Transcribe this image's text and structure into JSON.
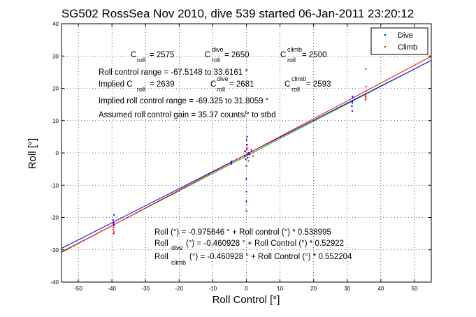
{
  "chart_data": {
    "type": "scatter",
    "title": "SG502 RossSea Nov 2010, dive 539 started 06-Jan-2011 23:20:12",
    "xlabel": "Roll Control [°]",
    "ylabel": "Roll [°]",
    "xlim": [
      -55,
      55
    ],
    "ylim": [
      -40,
      40
    ],
    "xticks": [
      -50,
      -40,
      -30,
      -20,
      -10,
      0,
      10,
      20,
      30,
      40,
      50
    ],
    "yticks": [
      -40,
      -30,
      -20,
      -10,
      0,
      10,
      20,
      30,
      40
    ],
    "grid": true,
    "legend_position": "top-right",
    "colors": {
      "dive": "#0000ff",
      "climb": "#ff0000",
      "fit_all": "#00aa00",
      "fit_dive": "#0000ff",
      "fit_climb": "#ff0000"
    },
    "series": [
      {
        "name": "Dive",
        "color": "#0000ff",
        "points": [
          [
            -39.5,
            -21.5
          ],
          [
            -39.4,
            -22.3
          ],
          [
            -39.6,
            -20.8
          ],
          [
            -39.5,
            -23.0
          ],
          [
            -39.4,
            -19.2
          ],
          [
            -39.5,
            -22.0
          ],
          [
            -4.5,
            -3.0
          ],
          [
            -4.4,
            -2.6
          ],
          [
            -4.5,
            -3.4
          ],
          [
            -0.5,
            -1.0
          ],
          [
            -0.3,
            0.5
          ],
          [
            -0.2,
            -2.0
          ],
          [
            0.0,
            -4.0
          ],
          [
            0.0,
            -8.0
          ],
          [
            0.0,
            -12.0
          ],
          [
            0.0,
            -15.0
          ],
          [
            0.0,
            -18.0
          ],
          [
            0.1,
            1.0
          ],
          [
            0.1,
            2.5
          ],
          [
            0.1,
            4.0
          ],
          [
            0.2,
            5.0
          ],
          [
            0.3,
            -0.5
          ],
          [
            0.4,
            -1.5
          ],
          [
            0.6,
            0.0
          ],
          [
            1.0,
            -0.5
          ],
          [
            1.5,
            0.5
          ],
          [
            31.5,
            16.0
          ],
          [
            31.6,
            17.5
          ],
          [
            31.4,
            14.5
          ],
          [
            31.5,
            13.0
          ],
          [
            31.6,
            17.0
          ],
          [
            31.5,
            15.5
          ]
        ]
      },
      {
        "name": "Climb",
        "color": "#ff0000",
        "points": [
          [
            -39.5,
            -23.0
          ],
          [
            -39.4,
            -24.5
          ],
          [
            -39.6,
            -22.0
          ],
          [
            -39.5,
            -25.0
          ],
          [
            -39.5,
            -23.8
          ],
          [
            -0.5,
            0.5
          ],
          [
            0.2,
            1.5
          ],
          [
            0.5,
            -0.5
          ],
          [
            1.0,
            0.0
          ],
          [
            1.5,
            1.0
          ],
          [
            2.0,
            -1.0
          ],
          [
            0.3,
            2.5
          ],
          [
            0.6,
            -2.5
          ],
          [
            35.5,
            18.0
          ],
          [
            35.6,
            17.0
          ],
          [
            35.5,
            19.0
          ],
          [
            35.4,
            16.5
          ],
          [
            35.6,
            20.5
          ],
          [
            35.5,
            26.0
          ],
          [
            35.4,
            17.5
          ]
        ]
      }
    ],
    "fit_lines": [
      {
        "name": "Roll fit",
        "color": "#00aa00",
        "intercept": -0.975646,
        "slope": 0.538995
      },
      {
        "name": "Roll dive fit",
        "color": "#0000ff",
        "intercept": -0.460928,
        "slope": 0.52922
      },
      {
        "name": "Roll climb fit",
        "color": "#ff0000",
        "intercept": -0.460928,
        "slope": 0.552204
      }
    ]
  },
  "annotations": {
    "c_roll_lead": "C",
    "c_roll_sub": "roll",
    "c_roll_val": " = 2575",
    "c_dive_lead": "C",
    "c_dive_sup": "dive",
    "c_dive_sub": "roll",
    "c_dive_val": " = 2650",
    "c_climb_lead": "C",
    "c_climb_sup": "climb",
    "c_climb_sub": "roll",
    "c_climb_val": " = 2500",
    "range_text": "Roll control range = -67.5148 to 33.6161 °",
    "implied_lead": "Implied C",
    "implied_sub": "roll",
    "implied_val": " = 2639",
    "implied_dive_lead": "C",
    "implied_dive_sup": "dive",
    "implied_dive_sub": "roll",
    "implied_dive_val": " = 2681",
    "implied_climb_lead": "C",
    "implied_climb_sup": "climb",
    "implied_climb_sub": "roll",
    "implied_climb_val": " = 2593",
    "implied_range_text": "Implied roll control range = -69.325 to 31.8059 °",
    "gain_text": "Assumed roll control gain = 35.37 counts/° to stbd",
    "eq_all": "Roll (°) = -0.975646 ° + Roll control (°) * 0.538995",
    "eq_dive_lead": "Roll",
    "eq_dive_sub": "dive",
    "eq_dive_rest": " (°) = -0.460928 ° + Roll Control (°) * 0.52922",
    "eq_climb_lead": "Roll",
    "eq_climb_sub": "climb",
    "eq_climb_rest": " (°) = -0.460928 ° + Roll Control (°) * 0.552204"
  },
  "legend": {
    "items": [
      {
        "label": "Dive",
        "color": "#0000ff"
      },
      {
        "label": "Climb",
        "color": "#ff0000"
      }
    ]
  }
}
